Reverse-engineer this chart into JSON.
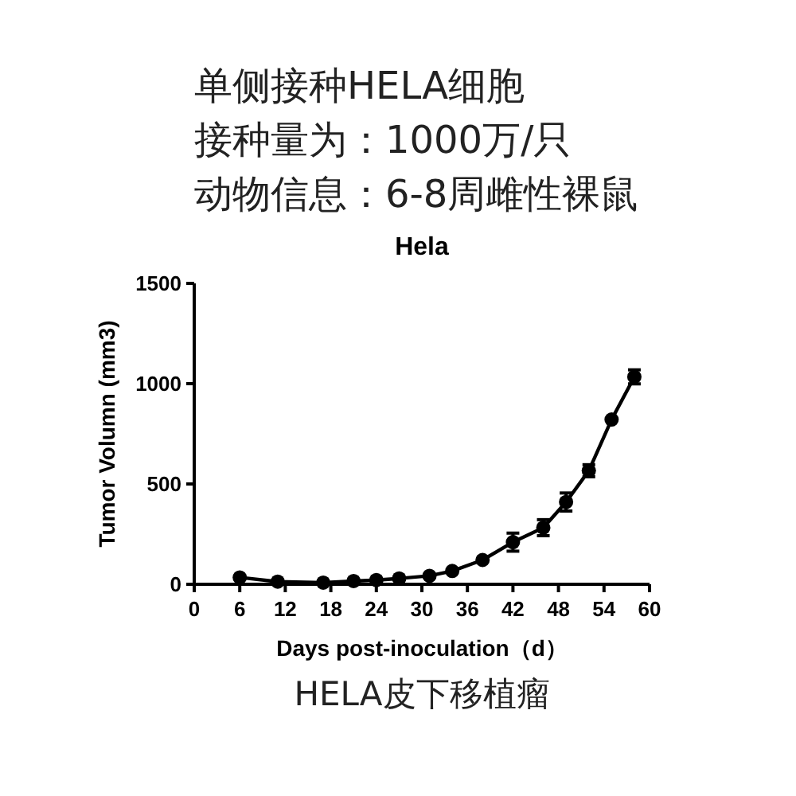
{
  "chart_data": {
    "type": "line",
    "title": "Hela",
    "xlabel": "Days post-inoculation（d）",
    "ylabel": "Tumor Volumn (mm3)",
    "annotations": [
      "单侧接种HELA细胞",
      "接种量为：1000万/只",
      "动物信息：6-8周雌性裸鼠",
      "HELA皮下移植瘤"
    ],
    "x": [
      6,
      11,
      17,
      21,
      24,
      27,
      31,
      34,
      38,
      42,
      46,
      49,
      52,
      55,
      58
    ],
    "series": [
      {
        "color": "#000000",
        "values": [
          34,
          13,
          8,
          16,
          21,
          29,
          42,
          66,
          121,
          210,
          282,
          410,
          566,
          821,
          1034
        ],
        "errors": [
          null,
          null,
          null,
          null,
          null,
          null,
          null,
          null,
          null,
          45,
          40,
          45,
          30,
          null,
          35
        ]
      }
    ],
    "xlim": [
      0,
      60
    ],
    "xticks": [
      0,
      6,
      12,
      18,
      24,
      30,
      36,
      42,
      48,
      54,
      60
    ],
    "ylim": [
      0,
      1500
    ],
    "yticks": [
      0,
      500,
      1000,
      1500
    ],
    "marker": "circle",
    "line_style": "solid"
  }
}
